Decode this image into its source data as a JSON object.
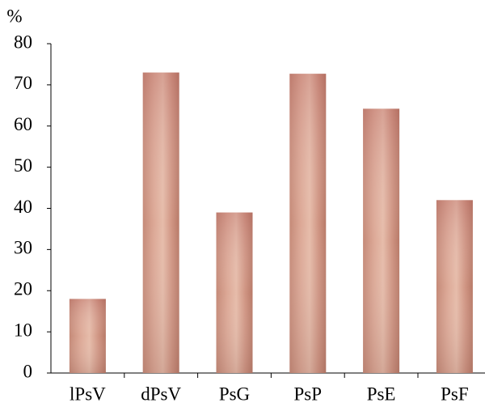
{
  "chart_data": {
    "type": "bar",
    "y_label": "%",
    "categories": [
      "lPsV",
      "dPsV",
      "PsG",
      "PsP",
      "PsE",
      "PsF"
    ],
    "values": [
      18,
      73,
      39,
      72.7,
      64.2,
      42
    ],
    "ylim": [
      0,
      80
    ],
    "yticks": [
      0,
      10,
      20,
      30,
      40,
      50,
      60,
      70,
      80
    ],
    "grid": false
  }
}
